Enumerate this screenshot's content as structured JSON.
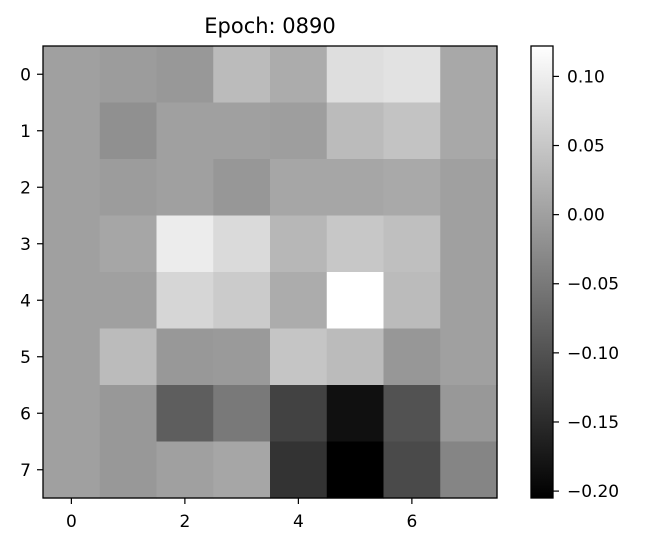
{
  "chart_data": {
    "type": "heatmap",
    "title": "Epoch: 0890",
    "xlabel": "",
    "ylabel": "",
    "colormap": "gray",
    "rows": 8,
    "cols": 8,
    "x_ticks": [
      0,
      2,
      4,
      6
    ],
    "y_ticks": [
      0,
      1,
      2,
      3,
      4,
      5,
      6,
      7
    ],
    "x_tick_labels": [
      "0",
      "2",
      "4",
      "6"
    ],
    "y_tick_labels": [
      "0",
      "1",
      "2",
      "3",
      "4",
      "5",
      "6",
      "7"
    ],
    "colorbar": {
      "range": [
        -0.205,
        0.122
      ],
      "ticks": [
        0.1,
        0.05,
        0.0,
        -0.05,
        -0.1,
        -0.15,
        -0.2
      ],
      "tick_labels": [
        "0.10",
        "0.05",
        "0.00",
        "−0.05",
        "−0.10",
        "−0.15",
        "−0.20"
      ]
    },
    "values": [
      [
        0.0,
        -0.005,
        -0.01,
        0.035,
        0.015,
        0.08,
        0.085,
        0.01
      ],
      [
        0.0,
        -0.02,
        0.0,
        0.0,
        -0.003,
        0.035,
        0.045,
        0.01
      ],
      [
        0.0,
        -0.005,
        0.0,
        -0.012,
        0.008,
        0.008,
        0.012,
        0.0
      ],
      [
        0.0,
        0.008,
        0.098,
        0.075,
        0.03,
        0.05,
        0.04,
        0.0
      ],
      [
        0.0,
        0.0,
        0.07,
        0.055,
        0.015,
        0.122,
        0.035,
        0.0
      ],
      [
        0.0,
        0.035,
        -0.01,
        -0.008,
        0.048,
        0.035,
        -0.012,
        0.0
      ],
      [
        0.0,
        -0.01,
        -0.085,
        -0.05,
        -0.12,
        -0.185,
        -0.1,
        -0.01
      ],
      [
        0.0,
        -0.01,
        0.0,
        0.008,
        -0.14,
        -0.205,
        -0.11,
        -0.035
      ]
    ]
  }
}
